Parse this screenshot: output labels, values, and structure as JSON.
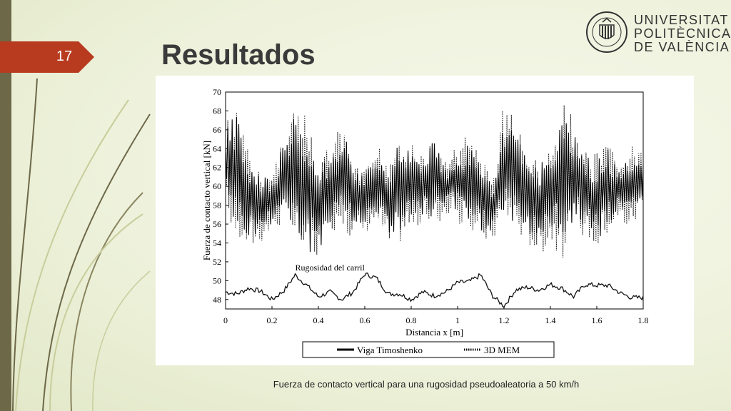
{
  "slide": {
    "page_number": "17",
    "title": "Resultados",
    "caption": "Fuerza de contacto vertical para una rugosidad pseudoaleatoria a 50 km/h"
  },
  "logo": {
    "lines": [
      "UNIVERSITAT",
      "POLITÈCNICA",
      "DE VALÈNCIA"
    ],
    "seal_text": "UNIVERSITAT POLITÈCNICA DE VALÈNCIA"
  },
  "colors": {
    "accent": "#b83a1f",
    "deco_dark": "#6d6848",
    "deco_light": "#c9cd9c"
  },
  "chart_data": {
    "type": "line",
    "xlabel": "Distancia x [m]",
    "ylabel": "Fuerza de contacto vertical [kN]",
    "xlim": [
      0,
      1.8
    ],
    "ylim": [
      47,
      70
    ],
    "x_ticks": [
      "0",
      "0.2",
      "0.4",
      "0.6",
      "0.8",
      "1",
      "1.2",
      "1.4",
      "1.6",
      "1.8"
    ],
    "y_ticks": [
      "48",
      "50",
      "52",
      "54",
      "56",
      "58",
      "60",
      "62",
      "64",
      "66",
      "68",
      "70"
    ],
    "annotation": "Rugosidad del carril",
    "legend_position": "bottom",
    "series": [
      {
        "name": "Viga Timoshenko",
        "style": "solid",
        "envelope_x": [
          0,
          0.05,
          0.1,
          0.15,
          0.2,
          0.25,
          0.3,
          0.35,
          0.4,
          0.45,
          0.5,
          0.55,
          0.6,
          0.65,
          0.7,
          0.75,
          0.8,
          0.85,
          0.9,
          0.95,
          1.0,
          1.05,
          1.1,
          1.15,
          1.2,
          1.25,
          1.3,
          1.35,
          1.4,
          1.45,
          1.5,
          1.55,
          1.6,
          1.65,
          1.7,
          1.75,
          1.8
        ],
        "envelope_max": [
          66.5,
          68,
          63,
          61,
          61,
          65,
          68,
          67,
          62,
          64,
          66,
          63,
          61,
          64,
          63,
          65,
          64,
          63,
          65,
          62,
          64,
          65,
          63,
          60,
          67,
          66,
          63,
          62,
          64,
          68,
          67,
          64,
          63,
          64,
          62,
          64,
          63
        ],
        "envelope_min": [
          58,
          55,
          54,
          55,
          56,
          57,
          55,
          52,
          53,
          56,
          57,
          55,
          56,
          57,
          54,
          55,
          56,
          57,
          56,
          58,
          57,
          56,
          55,
          55,
          57,
          56,
          55,
          54,
          55,
          54,
          55,
          56,
          54,
          56,
          57,
          56,
          59
        ]
      },
      {
        "name": "3D MEM",
        "style": "dotted",
        "envelope_x": [
          0,
          0.05,
          0.1,
          0.15,
          0.2,
          0.25,
          0.3,
          0.35,
          0.4,
          0.45,
          0.5,
          0.55,
          0.6,
          0.65,
          0.7,
          0.75,
          0.8,
          0.85,
          0.9,
          0.95,
          1.0,
          1.05,
          1.1,
          1.15,
          1.2,
          1.25,
          1.3,
          1.35,
          1.4,
          1.45,
          1.5,
          1.55,
          1.6,
          1.65,
          1.7,
          1.75,
          1.8
        ],
        "envelope_max": [
          67,
          68.5,
          63.5,
          61.5,
          61.5,
          66,
          69,
          67.5,
          62.5,
          64.5,
          66.5,
          63.5,
          61.5,
          64.5,
          63.5,
          66,
          64.5,
          63.5,
          65.5,
          62.5,
          64.5,
          66,
          63.5,
          60.5,
          69.5,
          67,
          63.5,
          62.5,
          64.5,
          69,
          68,
          64.5,
          63.5,
          64.5,
          62.5,
          64.5,
          63.5
        ],
        "envelope_min": [
          57,
          54,
          53,
          54,
          55,
          56,
          54,
          51.5,
          52.5,
          55,
          56,
          54,
          55,
          56,
          53,
          54,
          55,
          56,
          55,
          57,
          56,
          55,
          54,
          54,
          56,
          55,
          54,
          52.5,
          54,
          52,
          54,
          55,
          53,
          55,
          56,
          55,
          58
        ]
      },
      {
        "name": "Rugosidad del carril",
        "style": "solid",
        "x": [
          0,
          0.05,
          0.1,
          0.15,
          0.2,
          0.25,
          0.3,
          0.35,
          0.4,
          0.45,
          0.5,
          0.55,
          0.6,
          0.65,
          0.7,
          0.75,
          0.8,
          0.85,
          0.9,
          0.95,
          1.0,
          1.05,
          1.1,
          1.15,
          1.2,
          1.25,
          1.3,
          1.35,
          1.4,
          1.45,
          1.5,
          1.55,
          1.6,
          1.65,
          1.7,
          1.75,
          1.8
        ],
        "y": [
          48.8,
          48.6,
          49.2,
          48.9,
          48.0,
          48.9,
          50.6,
          49.5,
          48.3,
          48.8,
          48.0,
          48.8,
          50.7,
          50.3,
          48.6,
          48.6,
          48.0,
          48.8,
          48.4,
          48.8,
          49.8,
          49.9,
          50.6,
          48.4,
          47.3,
          49.0,
          49.3,
          49.0,
          49.6,
          49.2,
          48.3,
          49.6,
          49.5,
          49.5,
          48.7,
          48.2,
          48.2
        ]
      }
    ]
  }
}
